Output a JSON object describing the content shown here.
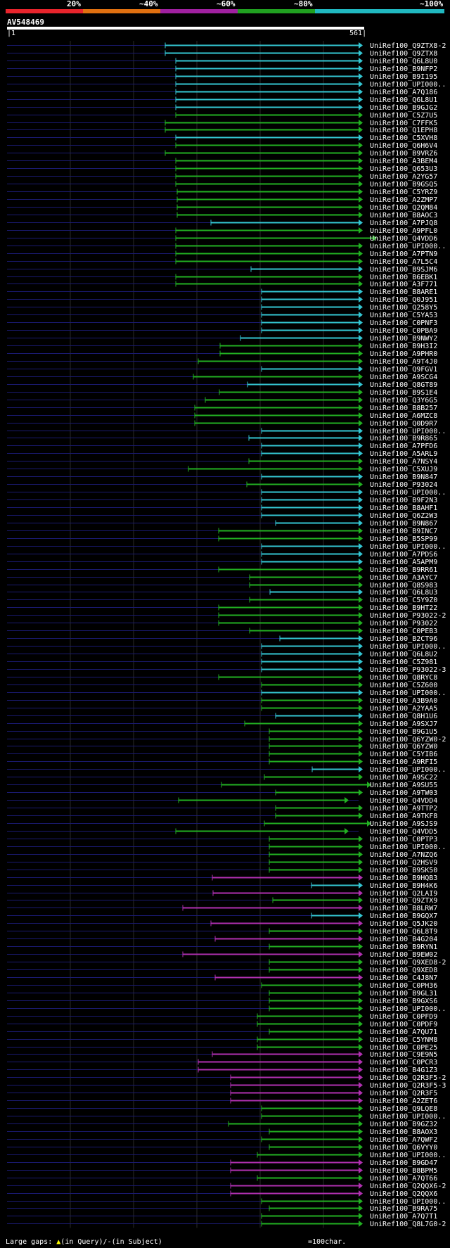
{
  "legend": [
    {
      "label": "20%",
      "color": "#e8242c"
    },
    {
      "label": "~40%",
      "color": "#e07010"
    },
    {
      "label": "~60%",
      "color": "#a020a0"
    },
    {
      "label": "~80%",
      "color": "#20a020"
    },
    {
      "label": "~100%",
      "color": "#20b8c0"
    }
  ],
  "query": {
    "id": "AV548469",
    "start": "1",
    "end": "561"
  },
  "colors": {
    "cyan": "#34c6d2",
    "green": "#22b022",
    "magenta": "#b030b0"
  },
  "hits": [
    {
      "name": "UniRef100_Q9ZTX8-2",
      "s": 235,
      "c": "c"
    },
    {
      "name": "UniRef100_Q9ZTX8",
      "s": 235,
      "c": "c"
    },
    {
      "name": "UniRef100_Q6L8U0",
      "s": 250,
      "c": "c"
    },
    {
      "name": "UniRef100_B9NFP2",
      "s": 250,
      "c": "c"
    },
    {
      "name": "UniRef100_B9I195",
      "s": 250,
      "c": "c"
    },
    {
      "name": "UniRef100_UPI000..",
      "s": 250,
      "c": "c"
    },
    {
      "name": "UniRef100_A7Q186",
      "s": 250,
      "c": "c"
    },
    {
      "name": "UniRef100_Q6L8U1",
      "s": 250,
      "c": "c"
    },
    {
      "name": "UniRef100_B9GJG2",
      "s": 250,
      "c": "c"
    },
    {
      "name": "UniRef100_C5Z7U5",
      "s": 250,
      "c": "g"
    },
    {
      "name": "UniRef100_C7FFK5",
      "s": 235,
      "c": "g"
    },
    {
      "name": "UniRef100_Q1EPH8",
      "s": 235,
      "c": "g"
    },
    {
      "name": "UniRef100_C5XVH8",
      "s": 250,
      "c": "c"
    },
    {
      "name": "UniRef100_Q6H6V4",
      "s": 250,
      "c": "g"
    },
    {
      "name": "UniRef100_B9VRZ6",
      "s": 235,
      "c": "g"
    },
    {
      "name": "UniRef100_A3BEM4",
      "s": 250,
      "c": "g"
    },
    {
      "name": "UniRef100_Q653U3",
      "s": 250,
      "c": "g"
    },
    {
      "name": "UniRef100_A2YG57",
      "s": 250,
      "c": "g"
    },
    {
      "name": "UniRef100_B9GSQ5",
      "s": 250,
      "c": "g"
    },
    {
      "name": "UniRef100_C5YRZ9",
      "s": 252,
      "c": "g"
    },
    {
      "name": "UniRef100_A2ZMP7",
      "s": 252,
      "c": "g"
    },
    {
      "name": "UniRef100_Q2QM84",
      "s": 252,
      "c": "g"
    },
    {
      "name": "UniRef100_B8AOC3",
      "s": 252,
      "c": "g"
    },
    {
      "name": "UniRef100_A7PJQ8",
      "s": 300,
      "c": "c"
    },
    {
      "name": "UniRef100_A9PFL0",
      "s": 250,
      "c": "g"
    },
    {
      "name": "UniRef100_Q4VDD6",
      "s": 250,
      "c": "g",
      "e": 530
    },
    {
      "name": "UniRef100_UPI000..",
      "s": 250,
      "c": "g"
    },
    {
      "name": "UniRef100_A7PTN9",
      "s": 250,
      "c": "g"
    },
    {
      "name": "UniRef100_A7L5C4",
      "s": 250,
      "c": "g"
    },
    {
      "name": "UniRef100_B9SJM6",
      "s": 357,
      "c": "c"
    },
    {
      "name": "UniRef100_B6EBK1",
      "s": 250,
      "c": "g"
    },
    {
      "name": "UniRef100_A3F771",
      "s": 250,
      "c": "g"
    },
    {
      "name": "UniRef100_B8ARE1",
      "s": 372,
      "c": "c"
    },
    {
      "name": "UniRef100_Q0J951",
      "s": 372,
      "c": "c"
    },
    {
      "name": "UniRef100_Q258Y5",
      "s": 372,
      "c": "c"
    },
    {
      "name": "UniRef100_C5YA53",
      "s": 372,
      "c": "c"
    },
    {
      "name": "UniRef100_C0PNF3",
      "s": 372,
      "c": "c"
    },
    {
      "name": "UniRef100_C0PBA9",
      "s": 372,
      "c": "c"
    },
    {
      "name": "UniRef100_B9NWY2",
      "s": 342,
      "c": "c"
    },
    {
      "name": "UniRef100_B9H3I2",
      "s": 313,
      "c": "g"
    },
    {
      "name": "UniRef100_A9PHR0",
      "s": 313,
      "c": "g"
    },
    {
      "name": "UniRef100_A9T4J0",
      "s": 282,
      "c": "g"
    },
    {
      "name": "UniRef100_Q9FGV1",
      "s": 372,
      "c": "c"
    },
    {
      "name": "UniRef100_A9SCG4",
      "s": 275,
      "c": "g"
    },
    {
      "name": "UniRef100_Q8GT89",
      "s": 352,
      "c": "c"
    },
    {
      "name": "UniRef100_B9S1E4",
      "s": 312,
      "c": "g"
    },
    {
      "name": "UniRef100_Q3Y6G5",
      "s": 292,
      "c": "g"
    },
    {
      "name": "UniRef100_B8B257",
      "s": 277,
      "c": "g"
    },
    {
      "name": "UniRef100_A6MZC8",
      "s": 277,
      "c": "g"
    },
    {
      "name": "UniRef100_Q0D9R7",
      "s": 277,
      "c": "g"
    },
    {
      "name": "UniRef100_UPI000..",
      "s": 372,
      "c": "c"
    },
    {
      "name": "UniRef100_B9R865",
      "s": 354,
      "c": "c"
    },
    {
      "name": "UniRef100_A7PFD6",
      "s": 372,
      "c": "c"
    },
    {
      "name": "UniRef100_A5ARL9",
      "s": 372,
      "c": "c"
    },
    {
      "name": "UniRef100_A7NSY4",
      "s": 354,
      "c": "g"
    },
    {
      "name": "UniRef100_C5XUJ9",
      "s": 268,
      "c": "g"
    },
    {
      "name": "UniRef100_B9N847",
      "s": 372,
      "c": "c"
    },
    {
      "name": "UniRef100_P93024",
      "s": 351,
      "c": "g"
    },
    {
      "name": "UniRef100_UPI000..",
      "s": 372,
      "c": "c"
    },
    {
      "name": "UniRef100_B9F2N3",
      "s": 372,
      "c": "c"
    },
    {
      "name": "UniRef100_B8AHF1",
      "s": 372,
      "c": "c"
    },
    {
      "name": "UniRef100_Q6Z2W3",
      "s": 372,
      "c": "c"
    },
    {
      "name": "UniRef100_B9N867",
      "s": 392,
      "c": "c"
    },
    {
      "name": "UniRef100_B9INC7",
      "s": 311,
      "c": "g"
    },
    {
      "name": "UniRef100_B5SP99",
      "s": 311,
      "c": "g"
    },
    {
      "name": "UniRef100_UPI000..",
      "s": 372,
      "c": "c"
    },
    {
      "name": "UniRef100_A7PDS6",
      "s": 372,
      "c": "c"
    },
    {
      "name": "UniRef100_A5APM9",
      "s": 372,
      "c": "c"
    },
    {
      "name": "UniRef100_B9RR61",
      "s": 311,
      "c": "g"
    },
    {
      "name": "UniRef100_A3AYC7",
      "s": 355,
      "c": "g"
    },
    {
      "name": "UniRef100_Q8S983",
      "s": 355,
      "c": "g"
    },
    {
      "name": "UniRef100_Q6L8U3",
      "s": 384,
      "c": "c"
    },
    {
      "name": "UniRef100_C5Y9Z0",
      "s": 355,
      "c": "g"
    },
    {
      "name": "UniRef100_B9HT22",
      "s": 311,
      "c": "g"
    },
    {
      "name": "UniRef100_P93022-2",
      "s": 311,
      "c": "g"
    },
    {
      "name": "UniRef100_P93022",
      "s": 311,
      "c": "g"
    },
    {
      "name": "UniRef100_C0PEB3",
      "s": 355,
      "c": "g"
    },
    {
      "name": "UniRef100_B2CT96",
      "s": 398,
      "c": "c"
    },
    {
      "name": "UniRef100_UPI000..",
      "s": 372,
      "c": "c"
    },
    {
      "name": "UniRef100_Q6L8U2",
      "s": 372,
      "c": "c"
    },
    {
      "name": "UniRef100_C5Z981",
      "s": 372,
      "c": "c"
    },
    {
      "name": "UniRef100_P93022-3",
      "s": 372,
      "c": "c"
    },
    {
      "name": "UniRef100_Q8RYC8",
      "s": 311,
      "c": "g"
    },
    {
      "name": "UniRef100_C5Z600",
      "s": 372,
      "c": "g"
    },
    {
      "name": "UniRef100_UPI000..",
      "s": 372,
      "c": "c"
    },
    {
      "name": "UniRef100_A3B9A0",
      "s": 372,
      "c": "g"
    },
    {
      "name": "UniRef100_A2YAA5",
      "s": 372,
      "c": "g"
    },
    {
      "name": "UniRef100_Q8H1U6",
      "s": 392,
      "c": "c"
    },
    {
      "name": "UniRef100_A9SXJ7",
      "s": 348,
      "c": "g"
    },
    {
      "name": "UniRef100_B9G1U5",
      "s": 383,
      "c": "g"
    },
    {
      "name": "UniRef100_Q6YZW0-2",
      "s": 383,
      "c": "g"
    },
    {
      "name": "UniRef100_Q6YZW0",
      "s": 383,
      "c": "g"
    },
    {
      "name": "UniRef100_C5YIB6",
      "s": 383,
      "c": "g"
    },
    {
      "name": "UniRef100_A9RFI5",
      "s": 383,
      "c": "g"
    },
    {
      "name": "UniRef100_UPI000..",
      "s": 444,
      "c": "c"
    },
    {
      "name": "UniRef100_A9SC22",
      "s": 376,
      "c": "g"
    },
    {
      "name": "UniRef100_A9SU55",
      "s": 315,
      "c": "g",
      "e": 522
    },
    {
      "name": "UniRef100_A9TW03",
      "s": 392,
      "c": "g"
    },
    {
      "name": "UniRef100_Q4VDD4",
      "s": 254,
      "c": "g",
      "e": 490
    },
    {
      "name": "UniRef100_A9TTP2",
      "s": 392,
      "c": "g"
    },
    {
      "name": "UniRef100_A9TKF8",
      "s": 392,
      "c": "g"
    },
    {
      "name": "UniRef100_A9SJS9",
      "s": 376,
      "c": "g",
      "e": 522
    },
    {
      "name": "UniRef100_Q4VDD5",
      "s": 250,
      "c": "g",
      "e": 490
    },
    {
      "name": "UniRef100_C0PTP3",
      "s": 383,
      "c": "g"
    },
    {
      "name": "UniRef100_UPI000..",
      "s": 383,
      "c": "g"
    },
    {
      "name": "UniRef100_A7NZQ6",
      "s": 383,
      "c": "g"
    },
    {
      "name": "UniRef100_Q2HSV9",
      "s": 383,
      "c": "g"
    },
    {
      "name": "UniRef100_B9SK50",
      "s": 383,
      "c": "g"
    },
    {
      "name": "UniRef100_B9HQB3",
      "s": 302,
      "c": "m"
    },
    {
      "name": "UniRef100_B9H4K6",
      "s": 443,
      "c": "c"
    },
    {
      "name": "UniRef100_Q2LAI9",
      "s": 303,
      "c": "m"
    },
    {
      "name": "UniRef100_Q9ZTX9",
      "s": 388,
      "c": "g"
    },
    {
      "name": "UniRef100_B8LRW7",
      "s": 260,
      "c": "m"
    },
    {
      "name": "UniRef100_B9GQX7",
      "s": 443,
      "c": "c"
    },
    {
      "name": "UniRef100_Q5JK20",
      "s": 300,
      "c": "m"
    },
    {
      "name": "UniRef100_Q6L8T9",
      "s": 383,
      "c": "g"
    },
    {
      "name": "UniRef100_B4G204",
      "s": 306,
      "c": "m"
    },
    {
      "name": "UniRef100_B9RYN1",
      "s": 383,
      "c": "g"
    },
    {
      "name": "UniRef100_B9EW02",
      "s": 260,
      "c": "m"
    },
    {
      "name": "UniRef100_Q9XED8-2",
      "s": 383,
      "c": "g"
    },
    {
      "name": "UniRef100_Q9XED8",
      "s": 383,
      "c": "g"
    },
    {
      "name": "UniRef100_C4J8N7",
      "s": 306,
      "c": "m"
    },
    {
      "name": "UniRef100_C0PH36",
      "s": 372,
      "c": "g"
    },
    {
      "name": "UniRef100_B9GL31",
      "s": 383,
      "c": "g"
    },
    {
      "name": "UniRef100_B9GXS6",
      "s": 383,
      "c": "g"
    },
    {
      "name": "UniRef100_UPI000..",
      "s": 383,
      "c": "g"
    },
    {
      "name": "UniRef100_C0PFD9",
      "s": 366,
      "c": "g"
    },
    {
      "name": "UniRef100_C0PDF9",
      "s": 366,
      "c": "g"
    },
    {
      "name": "UniRef100_A7QU71",
      "s": 383,
      "c": "g"
    },
    {
      "name": "UniRef100_C5YNM8",
      "s": 366,
      "c": "g"
    },
    {
      "name": "UniRef100_C0PE25",
      "s": 366,
      "c": "g"
    },
    {
      "name": "UniRef100_C9E9N5",
      "s": 302,
      "c": "m"
    },
    {
      "name": "UniRef100_C0PCR3",
      "s": 282,
      "c": "m"
    },
    {
      "name": "UniRef100_B4G1Z3",
      "s": 282,
      "c": "m"
    },
    {
      "name": "UniRef100_Q2R3F5-2",
      "s": 328,
      "c": "m"
    },
    {
      "name": "UniRef100_Q2R3F5-3",
      "s": 328,
      "c": "m"
    },
    {
      "name": "UniRef100_Q2R3F5",
      "s": 328,
      "c": "m"
    },
    {
      "name": "UniRef100_A2ZET6",
      "s": 328,
      "c": "m"
    },
    {
      "name": "UniRef100_Q9LQE8",
      "s": 372,
      "c": "g"
    },
    {
      "name": "UniRef100_UPI000..",
      "s": 372,
      "c": "g"
    },
    {
      "name": "UniRef100_B9GZ32",
      "s": 325,
      "c": "g"
    },
    {
      "name": "UniRef100_B8AOX3",
      "s": 383,
      "c": "g"
    },
    {
      "name": "UniRef100_A7QWF2",
      "s": 372,
      "c": "g"
    },
    {
      "name": "UniRef100_Q6VYY0",
      "s": 383,
      "c": "g"
    },
    {
      "name": "UniRef100_UPI000..",
      "s": 366,
      "c": "g"
    },
    {
      "name": "UniRef100_B9GD47",
      "s": 328,
      "c": "m"
    },
    {
      "name": "UniRef100_B8BPM5",
      "s": 328,
      "c": "m"
    },
    {
      "name": "UniRef100_A7QT66",
      "s": 366,
      "c": "g"
    },
    {
      "name": "UniRef100_Q2QQX6-2",
      "s": 328,
      "c": "m"
    },
    {
      "name": "UniRef100_Q2QQX6",
      "s": 328,
      "c": "m"
    },
    {
      "name": "UniRef100_UPI000..",
      "s": 372,
      "c": "g"
    },
    {
      "name": "UniRef100_B9RA75",
      "s": 383,
      "c": "g"
    },
    {
      "name": "UniRef100_A7Q7T1",
      "s": 372,
      "c": "g"
    },
    {
      "name": "UniRef100_Q8L7G0-2",
      "s": 372,
      "c": "g"
    }
  ],
  "footer": {
    "gaps_label": "Large gaps:",
    "query_marker": "▲",
    "gaps_query": "(in Query)/",
    "gaps_dash": "-",
    "gaps_subject": "(in Subject)",
    "scale_label": "=100char."
  }
}
